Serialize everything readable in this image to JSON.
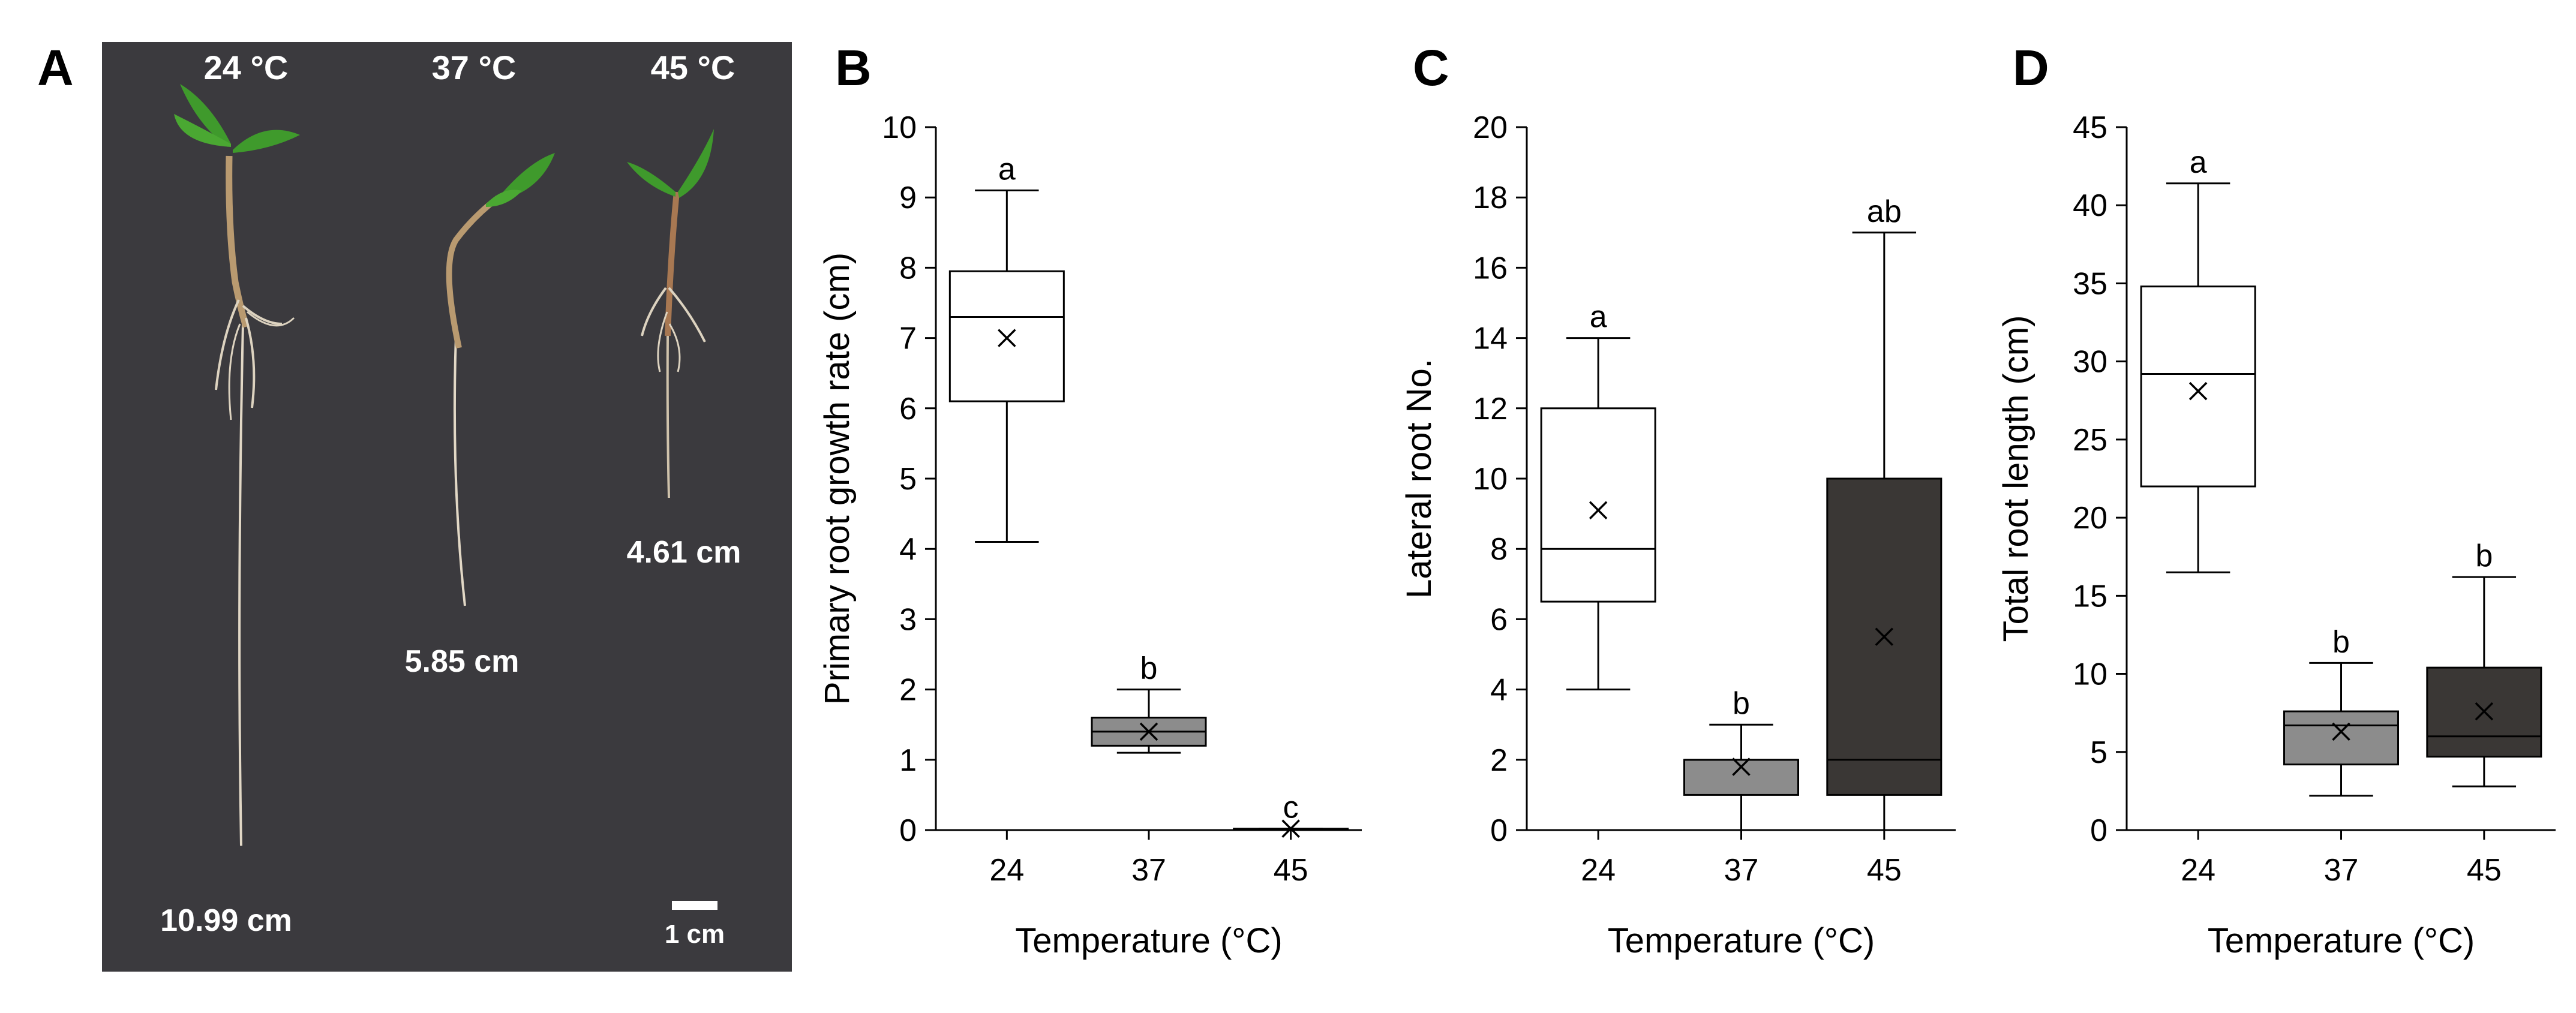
{
  "photo_panel": {
    "letter": "A",
    "temperature_labels": [
      "24 °C",
      "37 °C",
      "45 °C"
    ],
    "length_labels": [
      "10.99 cm",
      "5.85 cm",
      "4.61 cm"
    ],
    "scale_bar_label": "1 cm",
    "colors": {
      "background": "#3b3a3e",
      "leaf": "#3f9a2c",
      "stem": "#b99a70",
      "root": "#e2d8c6"
    }
  },
  "chart_data": [
    {
      "type": "box",
      "letter": "B",
      "ylabel": "Primary root growth rate (cm)",
      "xlabel": "Temperature (°C)",
      "categories": [
        "24",
        "37",
        "45"
      ],
      "ylim": [
        0,
        10
      ],
      "yticks": [
        0,
        1,
        2,
        3,
        4,
        5,
        6,
        7,
        8,
        9,
        10
      ],
      "boxes": [
        {
          "category": "24",
          "whisker_low": 4.1,
          "q1": 6.1,
          "median": 7.3,
          "q3": 7.95,
          "whisker_high": 9.1,
          "mean": 7.0,
          "sig": "a",
          "fill": "#ffffff"
        },
        {
          "category": "37",
          "whisker_low": 1.1,
          "q1": 1.2,
          "median": 1.4,
          "q3": 1.6,
          "whisker_high": 2.0,
          "mean": 1.4,
          "sig": "b",
          "fill": "#8c8c8c"
        },
        {
          "category": "45",
          "whisker_low": 0.0,
          "q1": 0.0,
          "median": 0.0,
          "q3": 0.02,
          "whisker_high": 0.02,
          "mean": 0.02,
          "sig": "c",
          "fill": "#3a3735"
        }
      ]
    },
    {
      "type": "box",
      "letter": "C",
      "ylabel": "Lateral root No.",
      "xlabel": "Temperature (°C)",
      "categories": [
        "24",
        "37",
        "45"
      ],
      "ylim": [
        0,
        20
      ],
      "yticks": [
        0,
        2,
        4,
        6,
        8,
        10,
        12,
        14,
        16,
        18,
        20
      ],
      "boxes": [
        {
          "category": "24",
          "whisker_low": 4,
          "q1": 6.5,
          "median": 8,
          "q3": 12,
          "whisker_high": 14,
          "mean": 9.1,
          "sig": "a",
          "fill": "#ffffff"
        },
        {
          "category": "37",
          "whisker_low": 0,
          "q1": 1,
          "median": 2,
          "q3": 2,
          "whisker_high": 3,
          "mean": 1.8,
          "sig": "b",
          "fill": "#8c8c8c"
        },
        {
          "category": "45",
          "whisker_low": 0,
          "q1": 1,
          "median": 2,
          "q3": 10,
          "whisker_high": 17,
          "mean": 5.5,
          "sig": "ab",
          "fill": "#3a3735"
        }
      ]
    },
    {
      "type": "box",
      "letter": "D",
      "ylabel": "Total root length (cm)",
      "xlabel": "Temperature (°C)",
      "categories": [
        "24",
        "37",
        "45"
      ],
      "ylim": [
        0,
        45
      ],
      "yticks": [
        0,
        5,
        10,
        15,
        20,
        25,
        30,
        35,
        40,
        45
      ],
      "boxes": [
        {
          "category": "24",
          "whisker_low": 16.5,
          "q1": 22,
          "median": 29.2,
          "q3": 34.8,
          "whisker_high": 41.4,
          "mean": 28.1,
          "sig": "a",
          "fill": "#ffffff"
        },
        {
          "category": "37",
          "whisker_low": 2.2,
          "q1": 4.2,
          "median": 6.7,
          "q3": 7.6,
          "whisker_high": 10.7,
          "mean": 6.3,
          "sig": "b",
          "fill": "#8c8c8c"
        },
        {
          "category": "45",
          "whisker_low": 2.8,
          "q1": 4.7,
          "median": 6.0,
          "q3": 10.4,
          "whisker_high": 16.2,
          "mean": 7.6,
          "sig": "b",
          "fill": "#3a3735"
        }
      ]
    }
  ]
}
